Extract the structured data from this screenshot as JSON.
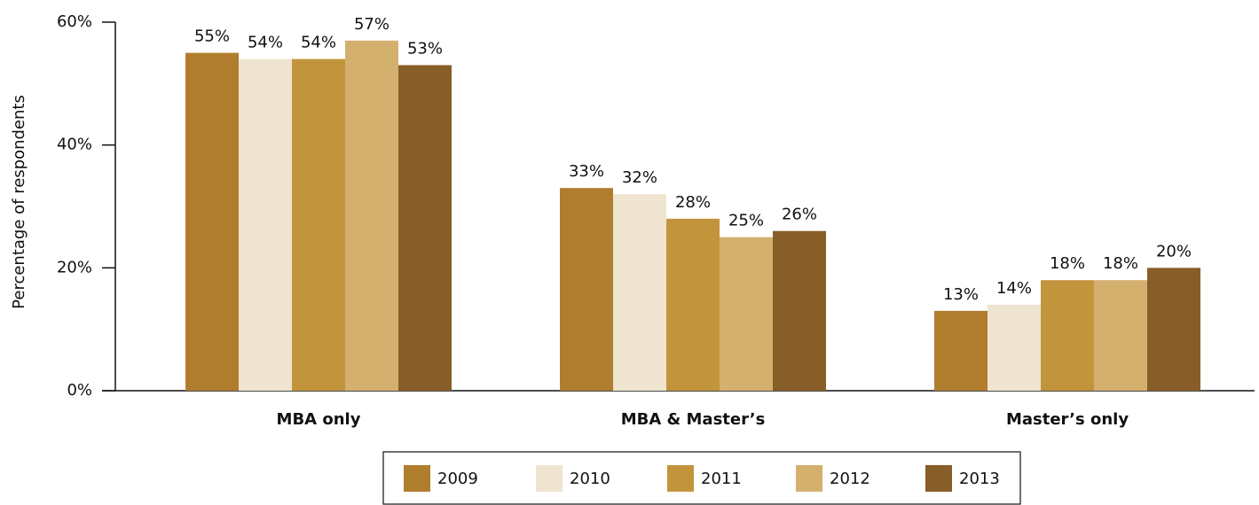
{
  "chart_data": {
    "type": "bar",
    "y_axis_label": "Percentage of respondents",
    "categories": [
      "MBA only",
      "MBA & Master’s",
      "Master’s only"
    ],
    "series": [
      {
        "name": "2009",
        "color": "#b07d2e",
        "values": [
          55,
          33,
          13
        ],
        "value_labels": [
          "55%",
          "33%",
          "13%"
        ]
      },
      {
        "name": "2010",
        "color": "#efe4d0",
        "values": [
          54,
          32,
          14
        ],
        "value_labels": [
          "54%",
          "32%",
          "14%"
        ]
      },
      {
        "name": "2011",
        "color": "#c2953d",
        "values": [
          54,
          28,
          18
        ],
        "value_labels": [
          "54%",
          "28%",
          "18%"
        ]
      },
      {
        "name": "2012",
        "color": "#d4b06f",
        "values": [
          57,
          25,
          18
        ],
        "value_labels": [
          "57%",
          "25%",
          "18%"
        ]
      },
      {
        "name": "2013",
        "color": "#875e27",
        "values": [
          53,
          26,
          20
        ],
        "value_labels": [
          "53%",
          "26%",
          "20%"
        ]
      }
    ],
    "ylim": [
      0,
      60
    ],
    "yticks": [
      {
        "value": 0,
        "label": "0%"
      },
      {
        "value": 20,
        "label": "20%"
      },
      {
        "value": 40,
        "label": "40%"
      },
      {
        "value": 60,
        "label": "60%"
      }
    ],
    "legend": "bottom"
  }
}
